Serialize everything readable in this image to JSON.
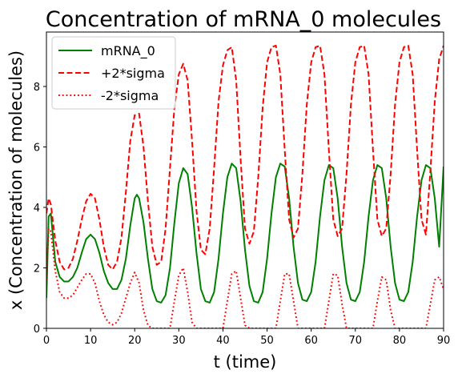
{
  "chart_data": {
    "type": "line",
    "title": "Concentration of mRNA_0 molecules",
    "xlabel": "t (time)",
    "ylabel": "x (Concentration of molecules)",
    "xlim": [
      0,
      90
    ],
    "ylim": [
      0,
      9.8
    ],
    "xticks": [
      "0",
      "10",
      "20",
      "30",
      "40",
      "50",
      "60",
      "70",
      "80",
      "90"
    ],
    "yticks": [
      "0",
      "2",
      "4",
      "6",
      "8"
    ],
    "legend_position": "top-left",
    "grid": false,
    "series": [
      {
        "name": "mRNA_0",
        "color": "#008000",
        "style": "solid",
        "points": [
          [
            0,
            1.0
          ],
          [
            0.5,
            3.7
          ],
          [
            1,
            3.8
          ],
          [
            1.5,
            3.0
          ],
          [
            2,
            2.2
          ],
          [
            3,
            1.7
          ],
          [
            4,
            1.55
          ],
          [
            5,
            1.55
          ],
          [
            6,
            1.7
          ],
          [
            7,
            2.0
          ],
          [
            8,
            2.5
          ],
          [
            9,
            2.95
          ],
          [
            10,
            3.1
          ],
          [
            11,
            2.95
          ],
          [
            12,
            2.5
          ],
          [
            13,
            1.9
          ],
          [
            14,
            1.5
          ],
          [
            15,
            1.3
          ],
          [
            16,
            1.3
          ],
          [
            17,
            1.6
          ],
          [
            18,
            2.3
          ],
          [
            19,
            3.4
          ],
          [
            20,
            4.3
          ],
          [
            20.5,
            4.42
          ],
          [
            21,
            4.3
          ],
          [
            22,
            3.5
          ],
          [
            23,
            2.3
          ],
          [
            24,
            1.3
          ],
          [
            25,
            0.9
          ],
          [
            26,
            0.85
          ],
          [
            27,
            1.1
          ],
          [
            28,
            2.0
          ],
          [
            29,
            3.5
          ],
          [
            30,
            4.8
          ],
          [
            31,
            5.3
          ],
          [
            32,
            5.1
          ],
          [
            33,
            4.0
          ],
          [
            34,
            2.5
          ],
          [
            35,
            1.3
          ],
          [
            36,
            0.9
          ],
          [
            37,
            0.85
          ],
          [
            38,
            1.2
          ],
          [
            39,
            2.3
          ],
          [
            40,
            3.8
          ],
          [
            41,
            5.0
          ],
          [
            42,
            5.45
          ],
          [
            43,
            5.3
          ],
          [
            44,
            4.2
          ],
          [
            45,
            2.6
          ],
          [
            46,
            1.4
          ],
          [
            47,
            0.9
          ],
          [
            48,
            0.85
          ],
          [
            49,
            1.2
          ],
          [
            50,
            2.3
          ],
          [
            51,
            3.8
          ],
          [
            52,
            5.0
          ],
          [
            53,
            5.45
          ],
          [
            54,
            5.35
          ],
          [
            55,
            4.3
          ],
          [
            56,
            2.7
          ],
          [
            57,
            1.5
          ],
          [
            58,
            0.95
          ],
          [
            59,
            0.9
          ],
          [
            60,
            1.2
          ],
          [
            61,
            2.2
          ],
          [
            62,
            3.7
          ],
          [
            63,
            4.9
          ],
          [
            64,
            5.4
          ],
          [
            65,
            5.3
          ],
          [
            66,
            4.3
          ],
          [
            67,
            2.7
          ],
          [
            68,
            1.5
          ],
          [
            69,
            0.95
          ],
          [
            70,
            0.9
          ],
          [
            71,
            1.2
          ],
          [
            72,
            2.2
          ],
          [
            73,
            3.7
          ],
          [
            74,
            4.9
          ],
          [
            75,
            5.4
          ],
          [
            76,
            5.3
          ],
          [
            77,
            4.3
          ],
          [
            78,
            2.7
          ],
          [
            79,
            1.5
          ],
          [
            80,
            0.95
          ],
          [
            81,
            0.9
          ],
          [
            82,
            1.2
          ],
          [
            83,
            2.2
          ],
          [
            84,
            3.7
          ],
          [
            85,
            4.9
          ],
          [
            86,
            5.4
          ],
          [
            87,
            5.3
          ],
          [
            88,
            4.3
          ],
          [
            89,
            2.7
          ],
          [
            90,
            5.35
          ]
        ]
      },
      {
        "name": "+2*sigma",
        "color": "#ff0000",
        "style": "dashed",
        "points": [
          [
            0,
            3.8
          ],
          [
            0.5,
            4.3
          ],
          [
            1,
            4.1
          ],
          [
            2,
            2.9
          ],
          [
            3,
            2.2
          ],
          [
            4,
            1.95
          ],
          [
            5,
            2.0
          ],
          [
            6,
            2.3
          ],
          [
            7,
            2.9
          ],
          [
            8,
            3.6
          ],
          [
            9,
            4.2
          ],
          [
            10,
            4.45
          ],
          [
            11,
            4.3
          ],
          [
            12,
            3.6
          ],
          [
            13,
            2.7
          ],
          [
            14,
            2.1
          ],
          [
            15,
            1.95
          ],
          [
            16,
            2.2
          ],
          [
            17,
            3.0
          ],
          [
            18,
            4.5
          ],
          [
            19,
            6.2
          ],
          [
            20,
            7.05
          ],
          [
            21,
            7.1
          ],
          [
            22,
            6.0
          ],
          [
            23,
            4.2
          ],
          [
            24,
            2.7
          ],
          [
            25,
            2.1
          ],
          [
            26,
            2.2
          ],
          [
            27,
            3.3
          ],
          [
            28,
            5.3
          ],
          [
            29,
            7.3
          ],
          [
            30,
            8.4
          ],
          [
            31,
            8.75
          ],
          [
            32,
            8.2
          ],
          [
            33,
            6.2
          ],
          [
            34,
            3.9
          ],
          [
            35,
            2.6
          ],
          [
            36,
            2.45
          ],
          [
            37,
            3.3
          ],
          [
            38,
            5.3
          ],
          [
            39,
            7.5
          ],
          [
            40,
            8.7
          ],
          [
            41,
            9.2
          ],
          [
            42,
            9.3
          ],
          [
            43,
            8.2
          ],
          [
            44,
            5.6
          ],
          [
            45,
            3.3
          ],
          [
            46,
            2.8
          ],
          [
            47,
            3.2
          ],
          [
            48,
            5.0
          ],
          [
            49,
            7.3
          ],
          [
            50,
            8.8
          ],
          [
            51,
            9.3
          ],
          [
            52,
            9.35
          ],
          [
            53,
            8.4
          ],
          [
            54,
            5.9
          ],
          [
            55,
            3.6
          ],
          [
            56,
            3.0
          ],
          [
            57,
            3.3
          ],
          [
            58,
            5.1
          ],
          [
            59,
            7.4
          ],
          [
            60,
            8.8
          ],
          [
            61,
            9.3
          ],
          [
            62,
            9.35
          ],
          [
            63,
            8.4
          ],
          [
            64,
            5.9
          ],
          [
            65,
            3.6
          ],
          [
            66,
            3.05
          ],
          [
            67,
            3.3
          ],
          [
            68,
            5.1
          ],
          [
            69,
            7.4
          ],
          [
            70,
            8.8
          ],
          [
            71,
            9.3
          ],
          [
            72,
            9.35
          ],
          [
            73,
            8.4
          ],
          [
            74,
            5.9
          ],
          [
            75,
            3.6
          ],
          [
            76,
            3.05
          ],
          [
            77,
            3.3
          ],
          [
            78,
            5.1
          ],
          [
            79,
            7.4
          ],
          [
            80,
            8.8
          ],
          [
            81,
            9.3
          ],
          [
            82,
            9.35
          ],
          [
            83,
            8.4
          ],
          [
            84,
            5.9
          ],
          [
            85,
            3.6
          ],
          [
            86,
            3.1
          ],
          [
            87,
            5.2
          ],
          [
            88,
            7.5
          ],
          [
            89,
            8.9
          ],
          [
            90,
            9.35
          ]
        ]
      },
      {
        "name": "-2*sigma",
        "color": "#ff0000",
        "style": "dotted",
        "points": [
          [
            0,
            1.6
          ],
          [
            0.5,
            3.3
          ],
          [
            1,
            3.2
          ],
          [
            2,
            1.9
          ],
          [
            3,
            1.2
          ],
          [
            4,
            1.0
          ],
          [
            5,
            1.0
          ],
          [
            6,
            1.1
          ],
          [
            7,
            1.35
          ],
          [
            8,
            1.6
          ],
          [
            9,
            1.8
          ],
          [
            10,
            1.8
          ],
          [
            11,
            1.5
          ],
          [
            12,
            0.9
          ],
          [
            13,
            0.45
          ],
          [
            14,
            0.2
          ],
          [
            15,
            0.12
          ],
          [
            16,
            0.2
          ],
          [
            17,
            0.5
          ],
          [
            18,
            1.0
          ],
          [
            19,
            1.5
          ],
          [
            20,
            1.85
          ],
          [
            21,
            1.5
          ],
          [
            22,
            0.6
          ],
          [
            23,
            0.1
          ],
          [
            24,
            0.0
          ],
          [
            28,
            0.0
          ],
          [
            29,
            0.9
          ],
          [
            30,
            1.75
          ],
          [
            31,
            2.0
          ],
          [
            32,
            1.2
          ],
          [
            33,
            0.2
          ],
          [
            34,
            0.0
          ],
          [
            40,
            0.0
          ],
          [
            41,
            0.9
          ],
          [
            42,
            1.8
          ],
          [
            43,
            1.9
          ],
          [
            44,
            1.0
          ],
          [
            45,
            0.1
          ],
          [
            46,
            0.0
          ],
          [
            52,
            0.0
          ],
          [
            53,
            0.9
          ],
          [
            54,
            1.8
          ],
          [
            55,
            1.8
          ],
          [
            56,
            0.9
          ],
          [
            57,
            0.0
          ],
          [
            63,
            0.0
          ],
          [
            64,
            0.9
          ],
          [
            65,
            1.8
          ],
          [
            66,
            1.75
          ],
          [
            67,
            0.8
          ],
          [
            68,
            0.0
          ],
          [
            74,
            0.0
          ],
          [
            75,
            0.9
          ],
          [
            76,
            1.7
          ],
          [
            77,
            1.6
          ],
          [
            78,
            0.6
          ],
          [
            79,
            0.0
          ],
          [
            86,
            0.0
          ],
          [
            87,
            0.8
          ],
          [
            88,
            1.6
          ],
          [
            89,
            1.7
          ],
          [
            90,
            1.3
          ]
        ]
      }
    ]
  }
}
